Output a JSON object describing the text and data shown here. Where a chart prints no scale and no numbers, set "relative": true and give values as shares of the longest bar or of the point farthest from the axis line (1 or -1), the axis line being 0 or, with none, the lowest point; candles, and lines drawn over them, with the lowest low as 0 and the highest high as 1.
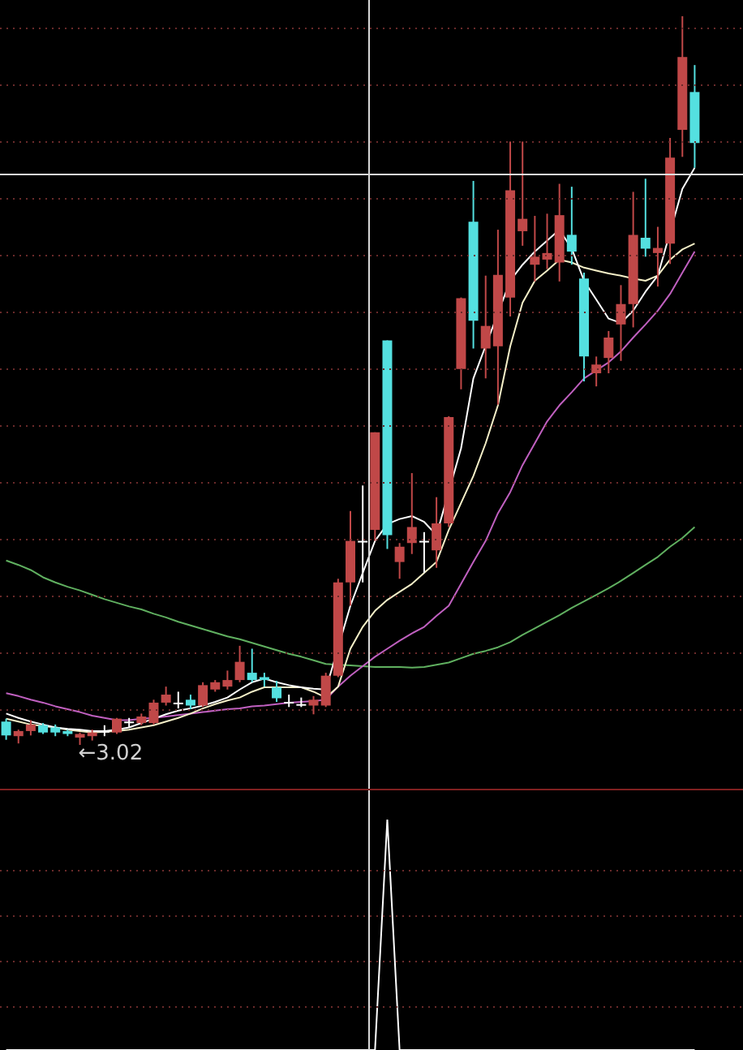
{
  "chart_data": [
    {
      "type": "candlestick",
      "relative": true,
      "categories": [
        null,
        null,
        null,
        null,
        null,
        null,
        null,
        null,
        null,
        null,
        null,
        null,
        null,
        null,
        null,
        null,
        null,
        null,
        null,
        null,
        null,
        null,
        null,
        null,
        null,
        null,
        null,
        null,
        null,
        null,
        null,
        null,
        null,
        null,
        null,
        null,
        null,
        null,
        null,
        null,
        null,
        null,
        null,
        null,
        null,
        null,
        null,
        null,
        null,
        null,
        null,
        null,
        null,
        null,
        null,
        null,
        null
      ],
      "ohlc": [
        [
          0.032,
          0.036,
          0.007,
          0.013
        ],
        [
          0.012,
          0.021,
          0.002,
          0.019
        ],
        [
          0.019,
          0.034,
          0.013,
          0.028
        ],
        [
          0.027,
          0.03,
          0.015,
          0.017
        ],
        [
          0.024,
          0.028,
          0.012,
          0.017
        ],
        [
          0.019,
          0.021,
          0.012,
          0.015
        ],
        [
          0.01,
          0.017,
          0,
          0.015
        ],
        [
          0.012,
          0.021,
          0.006,
          0.017
        ],
        [
          0.019,
          0.027,
          0.012,
          0.019
        ],
        [
          0.017,
          0.037,
          0.015,
          0.036
        ],
        [
          0.032,
          0.037,
          0.024,
          0.032
        ],
        [
          0.03,
          0.043,
          0.027,
          0.039
        ],
        [
          0.03,
          0.062,
          0.028,
          0.058
        ],
        [
          0.058,
          0.08,
          0.054,
          0.069
        ],
        [
          0.058,
          0.073,
          0.05,
          0.058
        ],
        [
          0.062,
          0.069,
          0.049,
          0.054
        ],
        [
          0.054,
          0.086,
          0.052,
          0.082
        ],
        [
          0.076,
          0.089,
          0.073,
          0.086
        ],
        [
          0.08,
          0.102,
          0.076,
          0.089
        ],
        [
          0.089,
          0.136,
          0.086,
          0.114
        ],
        [
          0.099,
          0.132,
          0.086,
          0.089
        ],
        [
          0.093,
          0.099,
          0.08,
          0.089
        ],
        [
          0.079,
          0.088,
          0.059,
          0.064
        ],
        [
          0.059,
          0.069,
          0.052,
          0.059
        ],
        [
          0.056,
          0.065,
          0.052,
          0.056
        ],
        [
          0.054,
          0.067,
          0.042,
          0.062
        ],
        [
          0.054,
          0.099,
          0.052,
          0.095
        ],
        [
          0.095,
          0.228,
          0.093,
          0.223
        ],
        [
          0.223,
          0.321,
          0.191,
          0.28
        ],
        [
          0.28,
          0.356,
          0.223,
          0.28
        ],
        [
          0.295,
          0.429,
          0.28,
          0.429
        ],
        [
          0.555,
          0.555,
          0.269,
          0.288
        ],
        [
          0.251,
          0.277,
          0.228,
          0.272
        ],
        [
          0.277,
          0.373,
          0.262,
          0.299
        ],
        [
          0.28,
          0.292,
          0.236,
          0.28
        ],
        [
          0.267,
          0.34,
          0.243,
          0.304
        ],
        [
          0.304,
          0.451,
          0.299,
          0.45
        ],
        [
          0.516,
          0.614,
          0.488,
          0.613
        ],
        [
          0.718,
          0.774,
          0.544,
          0.582
        ],
        [
          0.544,
          0.644,
          0.503,
          0.575
        ],
        [
          0.547,
          0.707,
          0.467,
          0.645
        ],
        [
          0.614,
          0.828,
          0.588,
          0.761
        ],
        [
          0.705,
          0.828,
          0.685,
          0.722
        ],
        [
          0.659,
          0.726,
          0.636,
          0.67
        ],
        [
          0.666,
          0.729,
          0.653,
          0.675
        ],
        [
          0.662,
          0.77,
          0.636,
          0.727
        ],
        [
          0.7,
          0.766,
          0.659,
          0.677
        ],
        [
          0.64,
          0.648,
          0.499,
          0.533
        ],
        [
          0.51,
          0.533,
          0.492,
          0.522
        ],
        [
          0.531,
          0.568,
          0.51,
          0.559
        ],
        [
          0.577,
          0.631,
          0.527,
          0.605
        ],
        [
          0.605,
          0.759,
          0.573,
          0.7
        ],
        [
          0.696,
          0.777,
          0.67,
          0.681
        ],
        [
          0.675,
          0.711,
          0.629,
          0.682
        ],
        [
          0.688,
          0.833,
          0.66,
          0.806
        ],
        [
          0.844,
          1,
          0.807,
          0.944
        ],
        [
          0.896,
          0.933,
          0.792,
          0.826
        ]
      ],
      "colors": [
        "#54e0e0",
        "#c04848",
        "#c04848",
        "#54e0e0",
        "#54e0e0",
        "#54e0e0",
        "#c04848",
        "#c04848",
        "#ffffff",
        "#c04848",
        "#ffffff",
        "#c04848",
        "#c04848",
        "#c04848",
        "#ffffff",
        "#54e0e0",
        "#c04848",
        "#c04848",
        "#c04848",
        "#c04848",
        "#54e0e0",
        "#54e0e0",
        "#54e0e0",
        "#ffffff",
        "#ffffff",
        "#c04848",
        "#c04848",
        "#c04848",
        "#c04848",
        "#ffffff",
        "#c04848",
        "#54e0e0",
        "#c04848",
        "#c04848",
        "#ffffff",
        "#c04848",
        "#c04848",
        "#c04848",
        "#54e0e0",
        "#c04848",
        "#c04848",
        "#c04848",
        "#c04848",
        "#c04848",
        "#c04848",
        "#c04848",
        "#54e0e0",
        "#54e0e0",
        "#c04848",
        "#c04848",
        "#c04848",
        "#c04848",
        "#54e0e0",
        "#c04848",
        "#c04848",
        "#c04848",
        "#54e0e0"
      ],
      "series": [
        {
          "type": "line",
          "color": "#ffffff",
          "values": [
            0.043,
            0.037,
            0.032,
            0.028,
            0.024,
            0.022,
            0.021,
            0.019,
            0.019,
            0.021,
            0.024,
            0.03,
            0.036,
            0.042,
            0.047,
            0.05,
            0.054,
            0.059,
            0.065,
            0.076,
            0.086,
            0.091,
            0.086,
            0.082,
            0.079,
            0.077,
            0.076,
            null,
            0.191,
            0.236,
            0.28,
            0.303,
            0.31,
            0.314,
            0.306,
            0.288,
            null,
            0.407,
            0.503,
            null,
            null,
            0.637,
            0.659,
            0.677,
            0.692,
            0.707,
            0.681,
            0.637,
            0.611,
            0.585,
            0.579,
            0.596,
            0.622,
            0.644,
            null,
            0.763,
            0.792
          ]
        },
        {
          "type": "line",
          "color": "#f5f0c8",
          "values": [
            0.036,
            0.032,
            0.028,
            0.026,
            0.024,
            0.021,
            0.019,
            0.017,
            0.018,
            0.019,
            0.021,
            0.024,
            0.027,
            0.032,
            0.037,
            0.043,
            0.05,
            0.056,
            0.061,
            0.065,
            0.073,
            0.079,
            0.079,
            0.079,
            0.079,
            0.073,
            0.065,
            0.08,
            0.132,
            0.162,
            0.184,
            0.199,
            0.21,
            0.221,
            0.236,
            0.251,
            0.295,
            0.332,
            0.369,
            0.414,
            0.466,
            0.547,
            0.607,
            0.637,
            0.651,
            0.666,
            0.662,
            0.655,
            0.651,
            0.647,
            0.644,
            0.64,
            0.637,
            0.644,
            0.666,
            0.68,
            0.688
          ]
        },
        {
          "type": "line",
          "color": "#c060c0",
          "values": [
            0.071,
            0.067,
            0.062,
            0.058,
            0.053,
            0.049,
            0.045,
            0.04,
            0.037,
            0.034,
            0.034,
            0.036,
            0.037,
            0.039,
            0.041,
            0.043,
            0.045,
            0.047,
            0.049,
            0.05,
            0.053,
            0.054,
            0.056,
            0.058,
            0.059,
            0.06,
            0.062,
            0.08,
            0.095,
            0.108,
            0.121,
            0.132,
            0.143,
            0.153,
            0.162,
            0.177,
            0.191,
            0.221,
            0.251,
            0.28,
            0.318,
            0.347,
            0.384,
            0.414,
            0.444,
            0.466,
            0.484,
            0.503,
            0.514,
            0.525,
            0.54,
            0.559,
            0.577,
            0.596,
            0.619,
            0.648,
            0.677
          ]
        },
        {
          "type": "line",
          "color": "#60b060",
          "values": [
            0.253,
            0.247,
            0.24,
            0.23,
            0.223,
            0.217,
            0.212,
            0.206,
            0.2,
            0.195,
            0.19,
            0.186,
            0.18,
            0.175,
            0.169,
            0.164,
            0.159,
            0.154,
            0.149,
            0.145,
            0.14,
            0.135,
            0.13,
            0.125,
            0.121,
            0.116,
            0.111,
            0.11,
            0.109,
            0.108,
            0.107,
            0.107,
            0.107,
            0.106,
            0.107,
            0.11,
            0.113,
            0.119,
            0.125,
            0.129,
            0.134,
            0.141,
            0.151,
            0.16,
            0.169,
            0.178,
            0.188,
            0.197,
            0.206,
            0.215,
            0.225,
            0.236,
            0.247,
            0.258,
            0.272,
            0.284,
            0.299
          ]
        }
      ],
      "ref_lines": [
        {
          "axis": "y",
          "value": 0.784,
          "color": "#e0e0e0"
        },
        {
          "axis": "y",
          "value": 0.984,
          "color": "#6a2a2a",
          "line_style": "dotted"
        },
        {
          "axis": "y",
          "value": 0.906,
          "color": "#6a2a2a",
          "line_style": "dotted"
        },
        {
          "axis": "y",
          "value": 0.829,
          "color": "#6a2a2a",
          "line_style": "dotted"
        },
        {
          "axis": "y",
          "value": 0.751,
          "color": "#6a2a2a",
          "line_style": "dotted"
        },
        {
          "axis": "y",
          "value": 0.673,
          "color": "#6a2a2a",
          "line_style": "dotted"
        },
        {
          "axis": "y",
          "value": 0.595,
          "color": "#6a2a2a",
          "line_style": "dotted"
        },
        {
          "axis": "y",
          "value": 0.517,
          "color": "#6a2a2a",
          "line_style": "dotted"
        },
        {
          "axis": "y",
          "value": 0.439,
          "color": "#6a2a2a",
          "line_style": "dotted"
        },
        {
          "axis": "y",
          "value": 0.361,
          "color": "#6a2a2a",
          "line_style": "dotted"
        },
        {
          "axis": "y",
          "value": 0.283,
          "color": "#6a2a2a",
          "line_style": "dotted"
        },
        {
          "axis": "y",
          "value": 0.205,
          "color": "#6a2a2a",
          "line_style": "dotted"
        },
        {
          "axis": "y",
          "value": 0.127,
          "color": "#6a2a2a",
          "line_style": "dotted"
        },
        {
          "axis": "y",
          "value": 0.049,
          "color": "#6a2a2a",
          "line_style": "dotted"
        }
      ],
      "annotations": [
        "←3.02"
      ]
    },
    {
      "type": "line",
      "relative": true,
      "color": "#ffffff",
      "ref_lines": [
        {
          "axis": "y",
          "value": 0.782,
          "color": "#6a2a2a",
          "line_style": "dotted"
        },
        {
          "axis": "y",
          "value": 0.585,
          "color": "#6a2a2a",
          "line_style": "dotted"
        },
        {
          "axis": "y",
          "value": 0.387,
          "color": "#6a2a2a",
          "line_style": "dotted"
        },
        {
          "axis": "y",
          "value": 0.19,
          "color": "#6a2a2a",
          "line_style": "dotted"
        }
      ],
      "categories": [
        null,
        null,
        null,
        null,
        null,
        null,
        null,
        null,
        null,
        null,
        null,
        null,
        null,
        null,
        null,
        null,
        null,
        null,
        null,
        null,
        null,
        null,
        null,
        null,
        null,
        null,
        null,
        null,
        null,
        null,
        null,
        null,
        null,
        null,
        null,
        null,
        null,
        null,
        null,
        null,
        null,
        null,
        null,
        null,
        null,
        null,
        null,
        null,
        null,
        null,
        null,
        null,
        null,
        null,
        null,
        null,
        null
      ],
      "values": [
        0,
        0,
        0,
        0,
        0,
        0,
        0,
        0,
        0,
        0,
        0,
        0,
        0,
        0,
        0,
        0,
        0,
        0,
        0,
        0,
        0,
        0,
        0,
        0,
        0,
        0,
        0,
        0,
        0,
        0,
        0,
        1,
        0,
        0,
        0,
        0,
        0,
        0,
        0,
        0,
        0,
        0,
        0,
        0,
        0,
        0,
        0,
        0,
        0,
        0,
        0,
        0,
        0,
        0,
        0,
        0,
        0
      ]
    }
  ]
}
